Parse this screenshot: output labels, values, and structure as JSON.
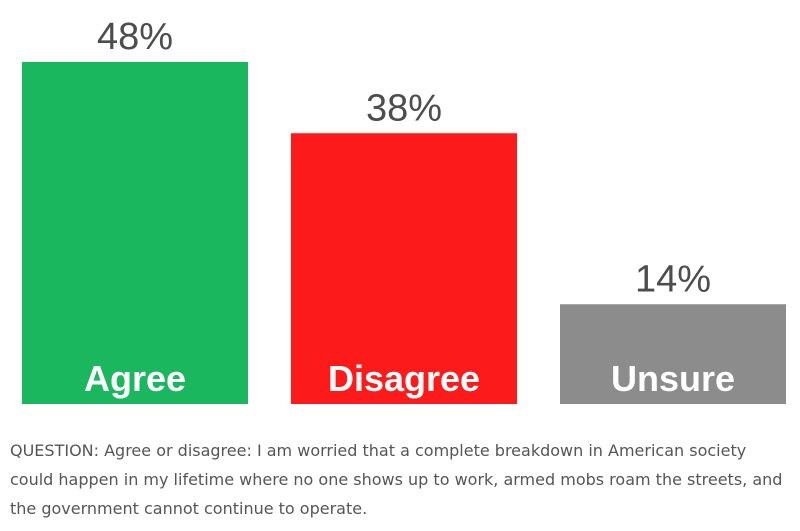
{
  "chart_data": {
    "type": "bar",
    "categories": [
      "Agree",
      "Disagree",
      "Unsure"
    ],
    "values": [
      48,
      38,
      14
    ],
    "value_labels": [
      "48%",
      "38%",
      "14%"
    ],
    "colors": [
      "#1bb75e",
      "#fc1a1a",
      "#8c8c8c"
    ],
    "ylim": [
      0,
      48
    ],
    "grid": false,
    "legend": "none"
  },
  "question": "QUESTION: Agree or disagree: I am worried that a complete breakdown in American society could happen in my lifetime where no one shows up to work, armed mobs roam the streets, and the government cannot continue to operate."
}
